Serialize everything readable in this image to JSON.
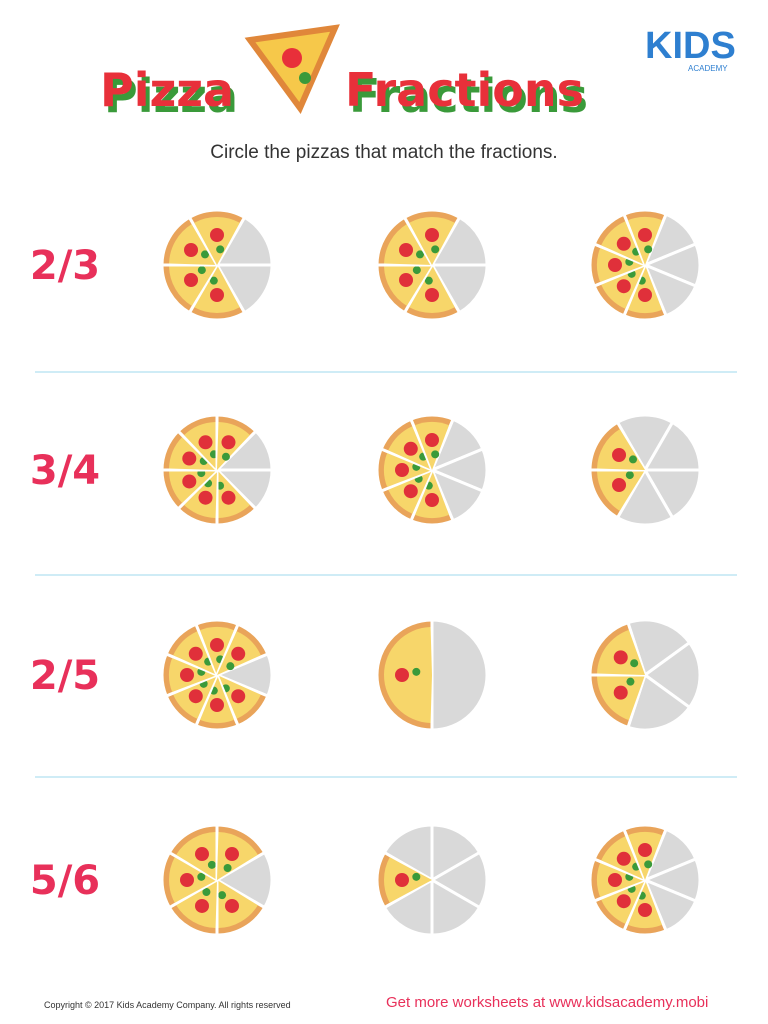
{
  "header": {
    "title_left": "Pizza",
    "title_right": "Fractions",
    "logo": "KIDS",
    "logo_sub": "ACADEMY",
    "instruction": "Circle the pizzas that match the fractions."
  },
  "rows": [
    {
      "fraction": "2/3",
      "pizzas": [
        {
          "slices": 6,
          "gray": 2
        },
        {
          "slices": 6,
          "gray": 2
        },
        {
          "slices": 8,
          "gray": 3
        }
      ]
    },
    {
      "fraction": "3/4",
      "pizzas": [
        {
          "slices": 8,
          "gray": 2
        },
        {
          "slices": 8,
          "gray": 3
        },
        {
          "slices": 6,
          "gray": 4
        }
      ]
    },
    {
      "fraction": "2/5",
      "pizzas": [
        {
          "slices": 8,
          "gray": 1
        },
        {
          "slices": 2,
          "gray": 1
        },
        {
          "slices": 5,
          "gray": 3
        }
      ]
    },
    {
      "fraction": "5/6",
      "pizzas": [
        {
          "slices": 6,
          "gray": 1
        },
        {
          "slices": 6,
          "gray": 5
        },
        {
          "slices": 8,
          "gray": 3
        }
      ]
    }
  ],
  "footer": {
    "copyright": "Copyright © 2017 Kids Academy Company. All rights reserved",
    "link": "Get more worksheets at www.kidsacademy.mobi"
  }
}
